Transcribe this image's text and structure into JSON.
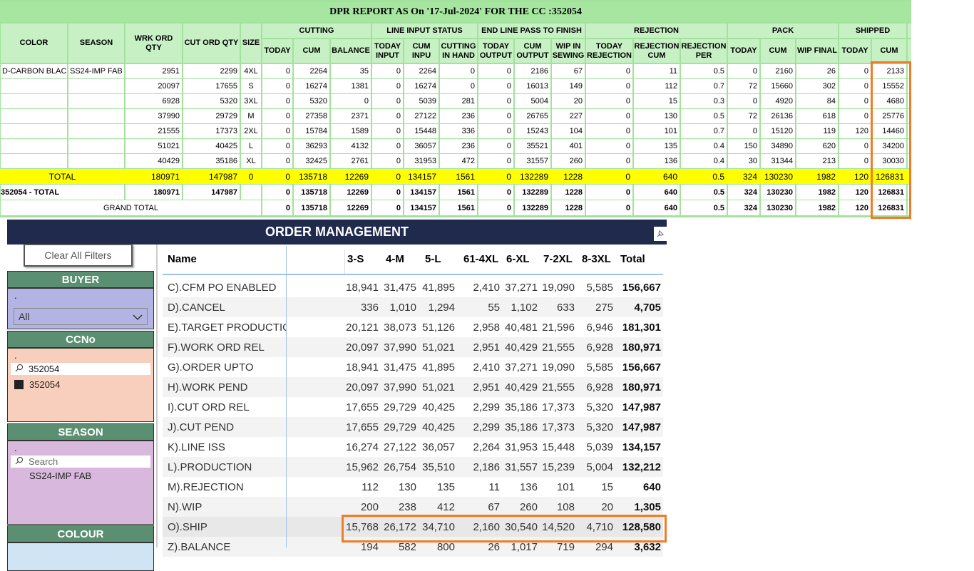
{
  "dpr": {
    "title": "DPR REPORT AS On '17-Jul-2024' FOR THE CC :352054",
    "groups": [
      "CUTTING",
      "LINE INPUT STATUS",
      "END LINE PASS TO FINISH",
      "REJECTION",
      "PACK",
      "SHIPPED"
    ],
    "columns": [
      "COLOR",
      "SEASON",
      "WRK ORD QTY",
      "CUT ORD QTY",
      "SIZE",
      "TODAY",
      "CUM",
      "BALANCE",
      "TODAY INPUT",
      "CUM INPU",
      "CUTTING IN HAND",
      "TODAY OUTPUT",
      "CUM OUTPUT",
      "WIP IN SEWING",
      "TODAY REJECTION",
      "REJECTION CUM",
      "REJECTION PER",
      "TODAY",
      "CUM",
      "WIP FINAL",
      "TODAY",
      "CUM"
    ],
    "rows": [
      {
        "color": "D-CARBON BLACK",
        "season": "SS24-IMP FAB",
        "cells": [
          "2951",
          "2299",
          "4XL",
          "0",
          "2264",
          "35",
          "0",
          "2264",
          "0",
          "0",
          "2186",
          "67",
          "0",
          "11",
          "0.5",
          "0",
          "2160",
          "26",
          "0",
          "2133"
        ]
      },
      {
        "cells": [
          "20097",
          "17655",
          "S",
          "0",
          "16274",
          "1381",
          "0",
          "16274",
          "0",
          "0",
          "16013",
          "149",
          "0",
          "112",
          "0.7",
          "72",
          "15660",
          "302",
          "0",
          "15552"
        ]
      },
      {
        "cells": [
          "6928",
          "5320",
          "3XL",
          "0",
          "5320",
          "0",
          "0",
          "5039",
          "281",
          "0",
          "5004",
          "20",
          "0",
          "15",
          "0.3",
          "0",
          "4920",
          "84",
          "0",
          "4680"
        ]
      },
      {
        "cells": [
          "37990",
          "29729",
          "M",
          "0",
          "27358",
          "2371",
          "0",
          "27122",
          "236",
          "0",
          "26765",
          "227",
          "0",
          "130",
          "0.5",
          "72",
          "26136",
          "618",
          "0",
          "25776"
        ]
      },
      {
        "cells": [
          "21555",
          "17373",
          "2XL",
          "0",
          "15784",
          "1589",
          "0",
          "15448",
          "336",
          "0",
          "15243",
          "104",
          "0",
          "101",
          "0.7",
          "0",
          "15120",
          "119",
          "120",
          "14460"
        ]
      },
      {
        "cells": [
          "51021",
          "40425",
          "L",
          "0",
          "36293",
          "4132",
          "0",
          "36057",
          "236",
          "0",
          "35521",
          "401",
          "0",
          "135",
          "0.4",
          "150",
          "34890",
          "620",
          "0",
          "34200"
        ]
      },
      {
        "cells": [
          "40429",
          "35186",
          "XL",
          "0",
          "32425",
          "2761",
          "0",
          "31953",
          "472",
          "0",
          "31557",
          "260",
          "0",
          "136",
          "0.4",
          "30",
          "31344",
          "213",
          "0",
          "30030"
        ]
      }
    ],
    "totals": [
      {
        "label": "TOTAL",
        "background": "#ffff00",
        "cells": [
          "180971",
          "147987",
          "0",
          "0",
          "135718",
          "12269",
          "0",
          "134157",
          "1561",
          "0",
          "132289",
          "1228",
          "0",
          "640",
          "0.5",
          "324",
          "130230",
          "1982",
          "120",
          "126831"
        ]
      },
      {
        "label": "352054 - TOTAL",
        "cells": [
          "180971",
          "147987",
          null,
          "0",
          "135718",
          "12269",
          "0",
          "134157",
          "1561",
          "0",
          "132289",
          "1228",
          "0",
          "640",
          "0.5",
          "324",
          "130230",
          "1982",
          "120",
          "126831"
        ]
      },
      {
        "label": "GRAND TOTAL",
        "cells": [
          "0",
          "135718",
          "12269",
          "0",
          "134157",
          "1561",
          "0",
          "132289",
          "1228",
          "0",
          "640",
          "0.5",
          "324",
          "130230",
          "1982",
          "120",
          "126831"
        ]
      }
    ]
  },
  "order": {
    "title": "ORDER MANAGEMENT",
    "clear_filters": "Clear All Filters",
    "slicers": [
      {
        "title": "BUYER",
        "dot": ".",
        "value": "All"
      },
      {
        "title": "CCNo",
        "dot": ".",
        "search": "352054",
        "item": "352054"
      },
      {
        "title": "SEASON",
        "dot": ".",
        "search": "Search",
        "item": "SS24-IMP FAB"
      },
      {
        "title": "COLOUR"
      }
    ],
    "matrix": {
      "columns": [
        "Name",
        "3-S",
        "4-M",
        "5-L",
        "61-4XL",
        "6-XL",
        "7-2XL",
        "8-3XL",
        "Total"
      ],
      "rows": [
        {
          "name": "C).CFM PO ENABLED",
          "values": [
            "18,941",
            "31,475",
            "41,895",
            "2,410",
            "37,271",
            "19,090",
            "5,585",
            "156,667"
          ]
        },
        {
          "name": "D).CANCEL",
          "values": [
            "336",
            "1,010",
            "1,294",
            "55",
            "1,102",
            "633",
            "275",
            "4,705"
          ]
        },
        {
          "name": "E).TARGET PRODUCTION",
          "values": [
            "20,121",
            "38,073",
            "51,126",
            "2,958",
            "40,481",
            "21,596",
            "6,946",
            "181,301"
          ]
        },
        {
          "name": "F).WORK ORD REL",
          "values": [
            "20,097",
            "37,990",
            "51,021",
            "2,951",
            "40,429",
            "21,555",
            "6,928",
            "180,971"
          ]
        },
        {
          "name": "G).ORDER UPTO",
          "values": [
            "18,941",
            "31,475",
            "41,895",
            "2,410",
            "37,271",
            "19,090",
            "5,585",
            "156,667"
          ]
        },
        {
          "name": "H).WORK PEND",
          "values": [
            "20,097",
            "37,990",
            "51,021",
            "2,951",
            "40,429",
            "21,555",
            "6,928",
            "180,971"
          ]
        },
        {
          "name": "I).CUT ORD REL",
          "values": [
            "17,655",
            "29,729",
            "40,425",
            "2,299",
            "35,186",
            "17,373",
            "5,320",
            "147,987"
          ]
        },
        {
          "name": "J).CUT PEND",
          "values": [
            "17,655",
            "29,729",
            "40,425",
            "2,299",
            "35,186",
            "17,373",
            "5,320",
            "147,987"
          ]
        },
        {
          "name": "K).LINE ISS",
          "values": [
            "16,274",
            "27,122",
            "36,057",
            "2,264",
            "31,953",
            "15,448",
            "5,039",
            "134,157"
          ]
        },
        {
          "name": "L).PRODUCTION",
          "values": [
            "15,962",
            "26,754",
            "35,510",
            "2,186",
            "31,557",
            "15,239",
            "5,004",
            "132,212"
          ]
        },
        {
          "name": "M).REJECTION",
          "values": [
            "112",
            "130",
            "135",
            "11",
            "136",
            "101",
            "15",
            "640"
          ]
        },
        {
          "name": "N).WIP",
          "values": [
            "200",
            "238",
            "412",
            "67",
            "260",
            "108",
            "20",
            "1,305"
          ]
        },
        {
          "name": "O).SHIP",
          "values": [
            "15,768",
            "26,172",
            "34,710",
            "2,160",
            "30,540",
            "14,520",
            "4,710",
            "128,580"
          ]
        },
        {
          "name": "Z).BALANCE",
          "values": [
            "194",
            "582",
            "800",
            "26",
            "1,017",
            "719",
            "294",
            "3,632"
          ]
        }
      ]
    }
  }
}
